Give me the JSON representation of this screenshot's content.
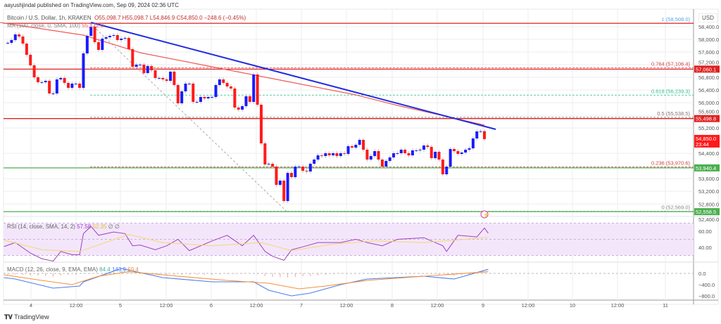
{
  "header": {
    "published": "aayushjindal published on TradingView.com, Sep 09, 2024 02:36 UTC",
    "symbol": "Bitcoin / U.S. Dollar, 1h, KRAKEN",
    "ohlc": "O55,098.7  H55,098.7  L54,846.9  C54,850.0  −248.6 (−0.45%)",
    "ma_label": "MA (100, close, 0, SMA, 100)",
    "ma_value": "55,172.0",
    "currency": "USD"
  },
  "footer": {
    "brand": "TradingView"
  },
  "colors": {
    "up": "#1a1aff",
    "down": "#ff1a1a",
    "ma": "#f05a5a",
    "trendline": "#1f2be0",
    "support": "#4caf50",
    "resistance": "#e02020",
    "rsi": "#a040c0",
    "rsi_ma": "#f5d76e",
    "macd": "#4a7cf0",
    "signal": "#f5903a"
  },
  "chart_data": [
    {
      "type": "candlestick",
      "title": "Bitcoin / U.S. Dollar, 1h, KRAKEN",
      "x_tick_labels": [
        "4",
        "12:00",
        "5",
        "12:00",
        "6",
        "12:00",
        "7",
        "12:00",
        "8",
        "12:00",
        "9",
        "12:00",
        "10",
        "12:00",
        "11"
      ],
      "y_tick_labels": [
        "58,400.0",
        "58,000.0",
        "57,600.0",
        "57,200.0",
        "56,800.0",
        "56,400.0",
        "56,000.0",
        "55,600.0",
        "55,200.0",
        "54,400.0",
        "53,600.0",
        "53,200.0",
        "52,800.0",
        "52,400.0"
      ],
      "y_ticks": [
        58400,
        58000,
        57600,
        57200,
        56800,
        56400,
        56000,
        55600,
        55200,
        54400,
        53600,
        53200,
        52800,
        52400
      ],
      "ylim": [
        52473,
        58688
      ],
      "grid": true,
      "closes": [
        57890,
        57978,
        58156,
        58089,
        57867,
        57512,
        57179,
        56802,
        56646,
        56646,
        56691,
        56291,
        56291,
        56735,
        56780,
        56624,
        56469,
        56602,
        56602,
        56469,
        57556,
        58111,
        58400,
        57912,
        57667,
        58023,
        58067,
        58111,
        58134,
        57978,
        58023,
        58045,
        57690,
        57135,
        57201,
        57201,
        56935,
        57157,
        57024,
        56780,
        56780,
        56735,
        56691,
        56979,
        56557,
        55980,
        56358,
        56602,
        56602,
        56025,
        56025,
        56180,
        56136,
        56180,
        56180,
        56557,
        56735,
        56624,
        56513,
        56447,
        55847,
        55780,
        55891,
        56202,
        56025,
        56891,
        55936,
        54715,
        54049,
        54071,
        53982,
        53405,
        53538,
        52894,
        53782,
        53649,
        53982,
        53982,
        53849,
        53827,
        54071,
        54204,
        54337,
        54315,
        54404,
        54337,
        54404,
        54315,
        54404,
        54382,
        54626,
        54581,
        54670,
        54826,
        54515,
        54204,
        54315,
        54470,
        54204,
        53982,
        54160,
        54271,
        54404,
        54404,
        54515,
        54404,
        54337,
        54493,
        54493,
        54515,
        54648,
        54604,
        54248,
        54448,
        54204,
        53738,
        53982,
        54537,
        54470,
        54382,
        54426,
        54515,
        54559,
        54870,
        55092,
        55099,
        54850
      ],
      "ma100": {
        "label": "MA (100, close, 0, SMA, 100)",
        "points": [
          [
            -2,
            58533
          ],
          [
            20,
            58134
          ],
          [
            35,
            57579
          ],
          [
            54,
            57135
          ],
          [
            73,
            56691
          ],
          [
            92,
            56247
          ],
          [
            103,
            55914
          ],
          [
            117,
            55536
          ],
          [
            126,
            55292
          ]
        ]
      },
      "trendline": {
        "points": [
          [
            22,
            58533
          ],
          [
            129,
            55159
          ]
        ]
      },
      "fib_retracement": [
        {
          "level": "1 (58,508.0)",
          "price": 58508,
          "color": "#5aa8e0"
        },
        {
          "level": "0.764 (57,106.4)",
          "price": 57106.4,
          "color": "#d04040"
        },
        {
          "level": "0.618 (56,239.3)",
          "price": 56239.3,
          "color": "#30c090"
        },
        {
          "level": "0.5 (55,538.5)",
          "price": 55538.5,
          "color": "#8a7070"
        },
        {
          "level": "0.236 (53,970.6)",
          "price": 53970.6,
          "color": "#d04040"
        },
        {
          "level": "0 (52,569.0)",
          "price": 52569,
          "color": "#888888"
        }
      ],
      "horizontal_lines": [
        {
          "label": "57,060.1",
          "price": 57060.1,
          "color": "#e02020"
        },
        {
          "label": "55,498.8",
          "price": 55498.8,
          "color": "#e02020"
        },
        {
          "label": "53,940.4",
          "price": 53940.4,
          "color": "#4caf50"
        },
        {
          "label": "52,558.5",
          "price": 52558.5,
          "color": "#4caf50"
        },
        {
          "label": "",
          "price": 58508,
          "color": "#e02020"
        }
      ],
      "last_price": {
        "label": "54,850.0",
        "countdown": "23:44"
      }
    },
    {
      "type": "line",
      "title": "RSI (14, close, SMA, 14, 2)",
      "values_label": [
        "57.58",
        "52.35",
        "∅",
        "∅"
      ],
      "y_tick_labels": [
        "60.00",
        "40.00"
      ],
      "band": [
        30,
        70
      ],
      "series": [
        {
          "name": "RSI",
          "points": [
            [
              -1,
              41
            ],
            [
              2,
              46
            ],
            [
              6,
              33
            ],
            [
              9,
              26
            ],
            [
              12,
              23
            ],
            [
              14,
              35
            ],
            [
              17,
              31
            ],
            [
              19,
              31
            ],
            [
              20,
              57
            ],
            [
              22,
              66
            ],
            [
              24,
              55
            ],
            [
              28,
              59
            ],
            [
              31,
              57
            ],
            [
              33,
              42
            ],
            [
              35,
              43
            ],
            [
              39,
              37
            ],
            [
              42,
              42
            ],
            [
              45,
              50
            ],
            [
              48,
              36
            ],
            [
              54,
              48
            ],
            [
              58,
              55
            ],
            [
              62,
              42
            ],
            [
              65,
              55
            ],
            [
              68,
              35
            ],
            [
              70,
              29
            ],
            [
              73,
              24
            ],
            [
              75,
              37
            ],
            [
              79,
              42
            ],
            [
              82,
              46
            ],
            [
              88,
              46
            ],
            [
              92,
              50
            ],
            [
              95,
              46
            ],
            [
              99,
              42
            ],
            [
              103,
              50
            ],
            [
              110,
              52
            ],
            [
              115,
              42
            ],
            [
              116,
              35
            ],
            [
              119,
              55
            ],
            [
              124,
              53
            ],
            [
              126,
              64
            ],
            [
              127,
              57.58
            ]
          ]
        },
        {
          "name": "RSI MA",
          "points": [
            [
              -1,
              49
            ],
            [
              9,
              37
            ],
            [
              19,
              35
            ],
            [
              32,
              56
            ],
            [
              41,
              46
            ],
            [
              54,
              42
            ],
            [
              67,
              46
            ],
            [
              75,
              36
            ],
            [
              86,
              44
            ],
            [
              97,
              48
            ],
            [
              110,
              46
            ],
            [
              127,
              52.35
            ]
          ]
        }
      ]
    },
    {
      "type": "line",
      "title": "MACD (12, 26, close, 9, EMA, EMA)",
      "values_label": [
        "84.4",
        "143.9",
        "59.4"
      ],
      "y_tick_labels": [
        "0.0",
        "−400.0",
        "−800.0"
      ],
      "series": [
        {
          "name": "MACD",
          "points": [
            [
              -1,
              -150
            ],
            [
              2,
              -200
            ],
            [
              12,
              -525
            ],
            [
              19,
              -450
            ],
            [
              20,
              -300
            ],
            [
              30,
              175
            ],
            [
              41,
              -150
            ],
            [
              54,
              -300
            ],
            [
              65,
              -300
            ],
            [
              69,
              -600
            ],
            [
              75,
              -800
            ],
            [
              80,
              -700
            ],
            [
              88,
              -400
            ],
            [
              95,
              -200
            ],
            [
              110,
              -100
            ],
            [
              118,
              -200
            ],
            [
              127,
              143.9
            ]
          ]
        },
        {
          "name": "Signal",
          "points": [
            [
              -1,
              -50
            ],
            [
              9,
              -250
            ],
            [
              17,
              -400
            ],
            [
              24,
              -100
            ],
            [
              32,
              60
            ],
            [
              45,
              -100
            ],
            [
              58,
              -250
            ],
            [
              69,
              -350
            ],
            [
              77,
              -550
            ],
            [
              84,
              -450
            ],
            [
              95,
              -250
            ],
            [
              110,
              -100
            ],
            [
              127,
              59.4
            ]
          ]
        }
      ]
    }
  ]
}
